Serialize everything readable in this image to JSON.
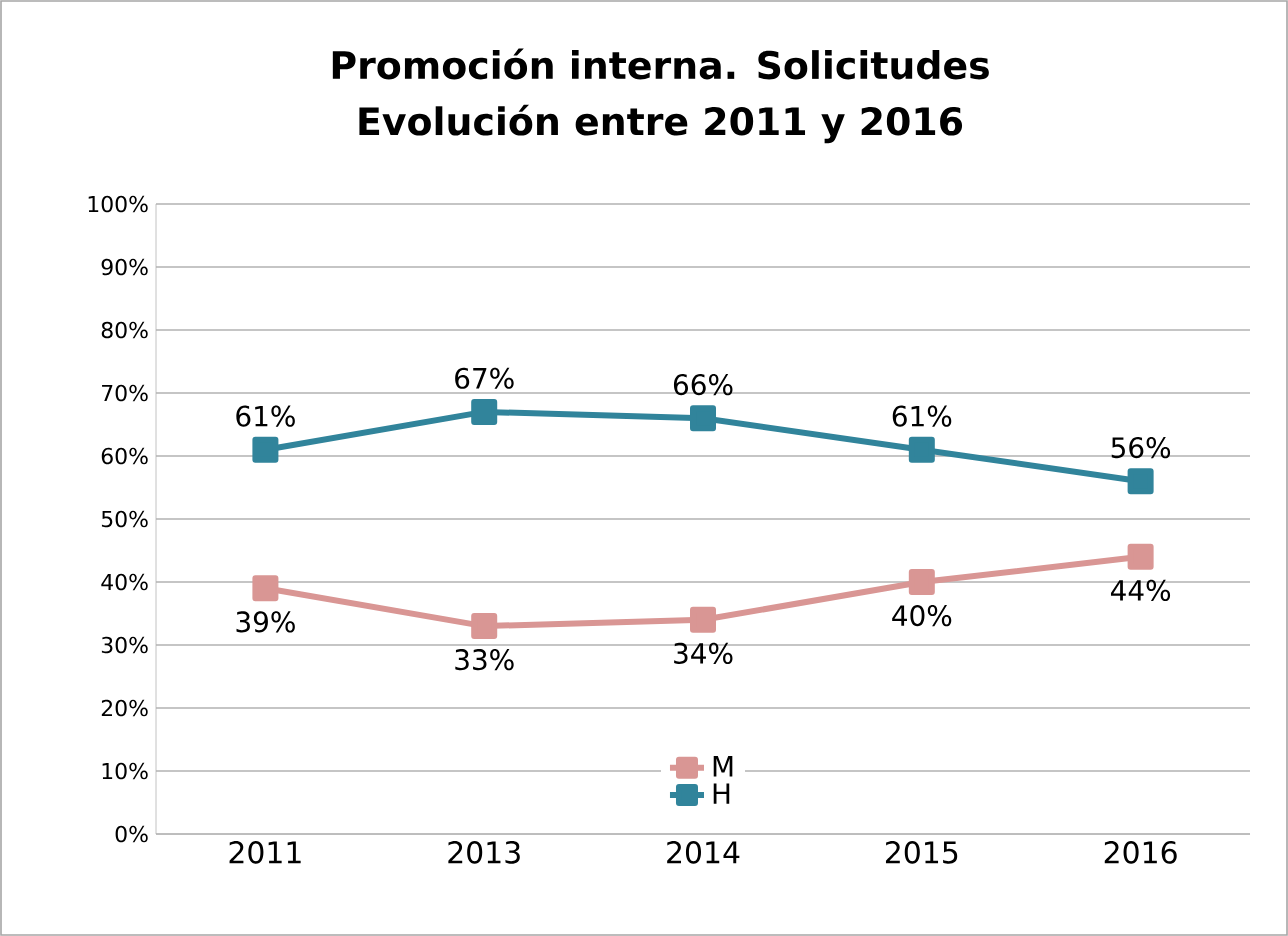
{
  "chart_data": {
    "type": "line",
    "title": "Promoción interna. Solicitudes",
    "subtitle": "Evolución entre 2011 y 2016",
    "categories": [
      "2011",
      "2013",
      "2014",
      "2015",
      "2016"
    ],
    "series": [
      {
        "name": "M",
        "color": "#d99694",
        "values": [
          39,
          33,
          34,
          40,
          44
        ],
        "value_labels": [
          "39%",
          "33%",
          "34%",
          "40%",
          "44%"
        ]
      },
      {
        "name": "H",
        "color": "#31849b",
        "values": [
          61,
          67,
          66,
          61,
          56
        ],
        "value_labels": [
          "61%",
          "67%",
          "66%",
          "61%",
          "56%"
        ]
      }
    ],
    "ylim": [
      0,
      100
    ],
    "yticks": [
      {
        "value": 0,
        "label": "0%"
      },
      {
        "value": 10,
        "label": "10%"
      },
      {
        "value": 20,
        "label": "20%"
      },
      {
        "value": 30,
        "label": "30%"
      },
      {
        "value": 40,
        "label": "40%"
      },
      {
        "value": 50,
        "label": "50%"
      },
      {
        "value": 60,
        "label": "60%"
      },
      {
        "value": 70,
        "label": "70%"
      },
      {
        "value": 80,
        "label": "80%"
      },
      {
        "value": 90,
        "label": "90%"
      },
      {
        "value": 100,
        "label": "100%"
      }
    ],
    "grid": "y",
    "legend": "bottom",
    "marker": "square",
    "line_style": "solid"
  }
}
